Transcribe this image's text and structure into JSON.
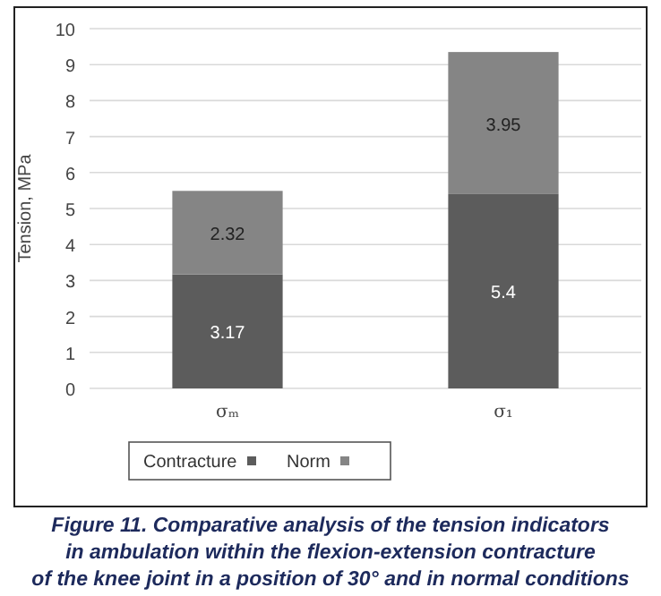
{
  "chart_data": {
    "type": "bar",
    "stacked": true,
    "ylabel": "Tension, MPa",
    "categories": [
      "σₘ",
      "σ₁"
    ],
    "series": [
      {
        "name": "Contracture",
        "color": "#5c5c5c",
        "values": [
          3.17,
          5.4
        ]
      },
      {
        "name": "Norm",
        "color": "#858585",
        "values": [
          2.32,
          3.95
        ]
      }
    ],
    "ylim": [
      0,
      10
    ],
    "yticks": [
      0,
      1,
      2,
      3,
      4,
      5,
      6,
      7,
      8,
      9,
      10
    ],
    "grid": "y",
    "legend": "bottom",
    "data_labels": true,
    "annotations": [
      "Figure 11. Comparative analysis of the tension indicators\nin ambulation within the flexion-extension contracture\nof the knee joint in a position of 30° and in normal conditions"
    ]
  }
}
